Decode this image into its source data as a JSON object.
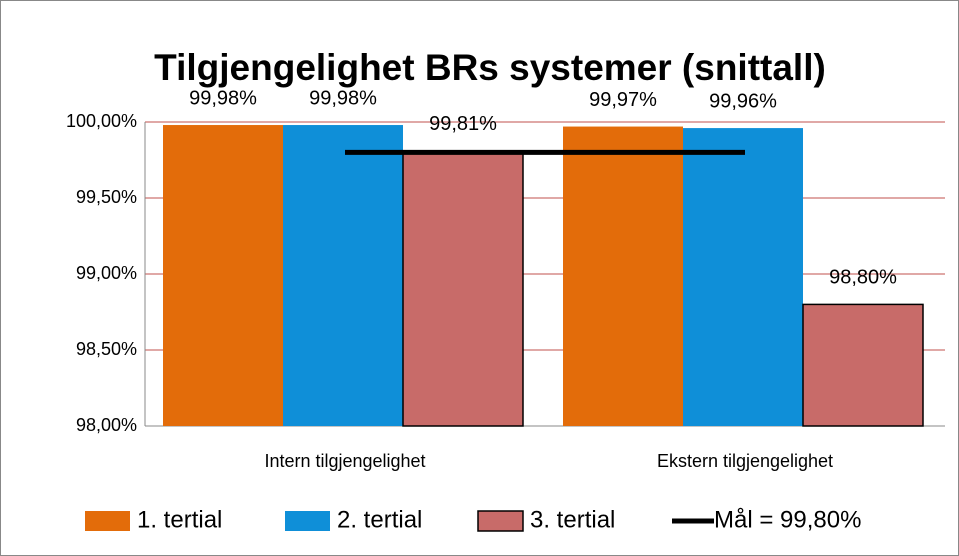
{
  "chart_data": {
    "type": "bar",
    "title": "Tilgjengelighet BRs systemer (snittall)",
    "categories": [
      "Intern tilgjengelighet",
      "Ekstern tilgjengelighet"
    ],
    "series": [
      {
        "name": "1. tertial",
        "color": "#e36c0a",
        "values": [
          99.98,
          99.97
        ],
        "value_labels": [
          "99,98%",
          "99,97%"
        ]
      },
      {
        "name": "2. tertial",
        "color": "#0f8fd8",
        "values": [
          99.98,
          99.96
        ],
        "value_labels": [
          "99,98%",
          "99,96%"
        ]
      },
      {
        "name": "3. tertial",
        "color": "#c86b69",
        "outline": "#000000",
        "values": [
          99.81,
          98.8
        ],
        "value_labels": [
          "99,81%",
          "98,80%"
        ]
      },
      {
        "name": "Mål = 99,80%",
        "type": "line",
        "color": "#000000",
        "values": [
          99.8,
          99.8
        ]
      }
    ],
    "ylim": [
      98,
      100
    ],
    "yticks": [
      {
        "value": 98,
        "label": "98,00%"
      },
      {
        "value": 98.5,
        "label": "98,50%"
      },
      {
        "value": 99,
        "label": "99,00%"
      },
      {
        "value": 99.5,
        "label": "99,50%"
      },
      {
        "value": 100,
        "label": "100,00%"
      }
    ],
    "grid": true,
    "grid_color": "#c0504d",
    "legend": "bottom"
  }
}
